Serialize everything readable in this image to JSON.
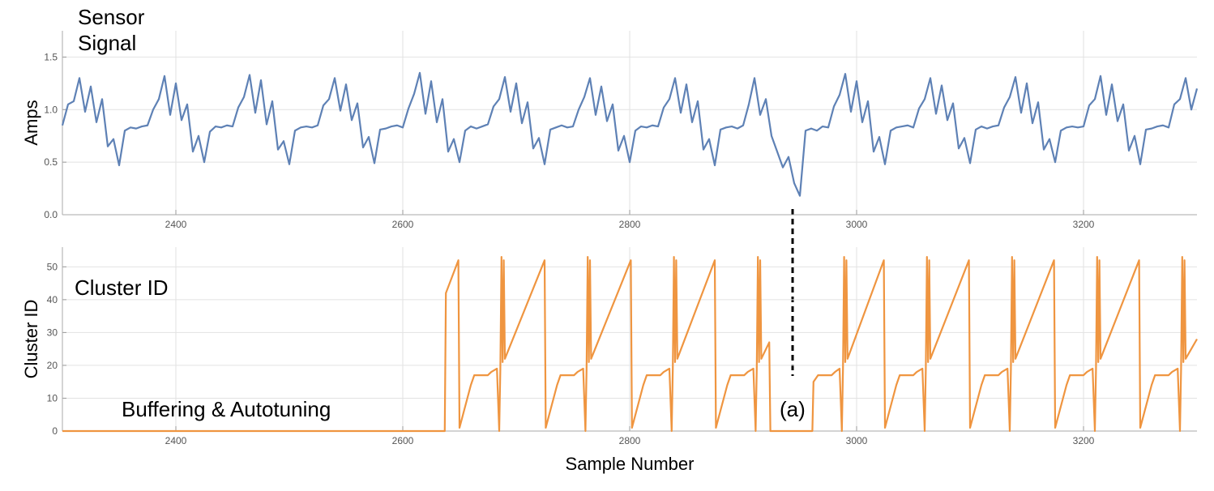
{
  "chart_data": [
    {
      "type": "line",
      "title_lines": [
        "Sensor",
        "Signal"
      ],
      "y_label": "Amps",
      "xlim": [
        2300,
        3300
      ],
      "xticks": [
        2400,
        2600,
        2800,
        3000,
        3200
      ],
      "ylim": [
        0,
        1.75
      ],
      "yticks": [
        {
          "value": 0,
          "label": "0.0"
        },
        {
          "value": 0.5,
          "label": "0.5"
        },
        {
          "value": 1,
          "label": "1.0"
        },
        {
          "value": 1.5,
          "label": "1.5"
        }
      ],
      "grid": true,
      "series": [
        {
          "color": "#5e81b5",
          "x": [
            2300,
            2305,
            2310,
            2315,
            2320,
            2325,
            2330,
            2335,
            2340,
            2345,
            2350,
            2355,
            2360,
            2365,
            2370,
            2375,
            2380,
            2385,
            2390,
            2395,
            2400,
            2405,
            2410,
            2415,
            2420,
            2425,
            2430,
            2435,
            2440,
            2445,
            2450,
            2455,
            2460,
            2465,
            2470,
            2475,
            2480,
            2485,
            2490,
            2495,
            2500,
            2505,
            2510,
            2515,
            2520,
            2525,
            2530,
            2535,
            2540,
            2545,
            2550,
            2555,
            2560,
            2565,
            2570,
            2575,
            2580,
            2585,
            2590,
            2595,
            2600,
            2605,
            2610,
            2615,
            2620,
            2625,
            2630,
            2635,
            2640,
            2645,
            2650,
            2655,
            2660,
            2665,
            2670,
            2675,
            2680,
            2685,
            2690,
            2695,
            2700,
            2705,
            2710,
            2715,
            2720,
            2725,
            2730,
            2735,
            2740,
            2745,
            2750,
            2755,
            2760,
            2765,
            2770,
            2775,
            2780,
            2785,
            2790,
            2795,
            2800,
            2805,
            2810,
            2815,
            2820,
            2825,
            2830,
            2835,
            2840,
            2845,
            2850,
            2855,
            2860,
            2865,
            2870,
            2875,
            2880,
            2885,
            2890,
            2895,
            2900,
            2905,
            2910,
            2915,
            2920,
            2925,
            2930,
            2935,
            2940,
            2945,
            2950,
            2955,
            2960,
            2965,
            2970,
            2975,
            2980,
            2985,
            2990,
            2995,
            3000,
            3005,
            3010,
            3015,
            3020,
            3025,
            3030,
            3035,
            3040,
            3045,
            3050,
            3055,
            3060,
            3065,
            3070,
            3075,
            3080,
            3085,
            3090,
            3095,
            3100,
            3105,
            3110,
            3115,
            3120,
            3125,
            3130,
            3135,
            3140,
            3145,
            3150,
            3155,
            3160,
            3165,
            3170,
            3175,
            3180,
            3185,
            3190,
            3195,
            3200,
            3205,
            3210,
            3215,
            3220,
            3225,
            3230,
            3235,
            3240,
            3245,
            3250,
            3255,
            3260,
            3265,
            3270,
            3275,
            3280,
            3285,
            3290,
            3295,
            3300
          ],
          "values": [
            0.85,
            1.05,
            1.08,
            1.3,
            0.98,
            1.22,
            0.88,
            1.1,
            0.65,
            0.72,
            0.47,
            0.8,
            0.83,
            0.82,
            0.84,
            0.85,
            1.0,
            1.1,
            1.32,
            0.95,
            1.25,
            0.9,
            1.05,
            0.6,
            0.75,
            0.5,
            0.79,
            0.84,
            0.83,
            0.85,
            0.84,
            1.02,
            1.12,
            1.33,
            0.97,
            1.28,
            0.86,
            1.08,
            0.62,
            0.7,
            0.48,
            0.8,
            0.83,
            0.84,
            0.83,
            0.85,
            1.04,
            1.1,
            1.3,
            0.99,
            1.24,
            0.9,
            1.06,
            0.64,
            0.74,
            0.49,
            0.81,
            0.82,
            0.84,
            0.85,
            0.83,
            1.01,
            1.15,
            1.35,
            0.96,
            1.27,
            0.88,
            1.1,
            0.6,
            0.72,
            0.5,
            0.8,
            0.84,
            0.82,
            0.84,
            0.86,
            1.03,
            1.1,
            1.31,
            0.98,
            1.25,
            0.87,
            1.07,
            0.63,
            0.73,
            0.48,
            0.81,
            0.83,
            0.85,
            0.83,
            0.84,
            1.0,
            1.12,
            1.3,
            0.95,
            1.22,
            0.89,
            1.05,
            0.61,
            0.75,
            0.5,
            0.8,
            0.84,
            0.83,
            0.85,
            0.84,
            1.02,
            1.1,
            1.3,
            0.97,
            1.24,
            0.88,
            1.08,
            0.62,
            0.72,
            0.47,
            0.81,
            0.83,
            0.84,
            0.82,
            0.85,
            1.05,
            1.3,
            0.95,
            1.1,
            0.75,
            0.6,
            0.45,
            0.55,
            0.3,
            0.18,
            0.8,
            0.82,
            0.8,
            0.84,
            0.83,
            1.03,
            1.14,
            1.34,
            0.98,
            1.27,
            0.88,
            1.08,
            0.6,
            0.74,
            0.48,
            0.8,
            0.83,
            0.84,
            0.85,
            0.83,
            1.01,
            1.1,
            1.3,
            0.96,
            1.23,
            0.9,
            1.06,
            0.63,
            0.73,
            0.49,
            0.81,
            0.84,
            0.82,
            0.84,
            0.85,
            1.02,
            1.12,
            1.31,
            0.97,
            1.25,
            0.87,
            1.07,
            0.62,
            0.72,
            0.5,
            0.8,
            0.83,
            0.84,
            0.83,
            0.84,
            1.04,
            1.1,
            1.32,
            0.95,
            1.24,
            0.89,
            1.05,
            0.61,
            0.75,
            0.48,
            0.81,
            0.82,
            0.84,
            0.85,
            0.83,
            1.05,
            1.1,
            1.3,
            1.0,
            1.2
          ]
        }
      ]
    },
    {
      "type": "line",
      "title": "Cluster ID",
      "y_label": "Cluster ID",
      "x_label": "Sample Number",
      "annotations": [
        {
          "text": "Buffering & Autotuning"
        },
        {
          "text": "(a)"
        }
      ],
      "xlim": [
        2300,
        3300
      ],
      "xticks": [
        2400,
        2600,
        2800,
        3000,
        3200
      ],
      "ylim": [
        0,
        56
      ],
      "yticks": [
        0,
        10,
        20,
        30,
        40,
        50
      ],
      "grid": true,
      "series": [
        {
          "color": "#ef9540",
          "x": [
            2300,
            2637,
            2638,
            2649,
            2650,
            2660,
            2663,
            2675,
            2678,
            2683,
            2685,
            2686,
            2687,
            2688,
            2689,
            2690,
            2725,
            2726,
            2736,
            2739,
            2751,
            2754,
            2759,
            2761,
            2762,
            2763,
            2764,
            2765,
            2766,
            2801,
            2802,
            2812,
            2815,
            2827,
            2830,
            2835,
            2837,
            2838,
            2839,
            2840,
            2841,
            2842,
            2875,
            2876,
            2886,
            2889,
            2901,
            2904,
            2909,
            2911,
            2912,
            2913,
            2914,
            2915,
            2916,
            2923,
            2924,
            2961,
            2962,
            2966,
            2978,
            2981,
            2985,
            2987,
            2988,
            2989,
            2990,
            2991,
            2992,
            3024,
            3025,
            3035,
            3038,
            3050,
            3053,
            3058,
            3060,
            3061,
            3062,
            3063,
            3064,
            3065,
            3099,
            3100,
            3110,
            3113,
            3125,
            3128,
            3133,
            3135,
            3136,
            3137,
            3138,
            3139,
            3140,
            3174,
            3175,
            3185,
            3188,
            3200,
            3203,
            3208,
            3210,
            3211,
            3212,
            3213,
            3214,
            3215,
            3249,
            3250,
            3260,
            3263,
            3275,
            3278,
            3283,
            3285,
            3286,
            3287,
            3288,
            3289,
            3290,
            3300
          ],
          "values": [
            0,
            0,
            42,
            52,
            1,
            14,
            17,
            17,
            18,
            19,
            0,
            19,
            53,
            21,
            52,
            22,
            52,
            1,
            14,
            17,
            17,
            18,
            19,
            0,
            19,
            53,
            21,
            52,
            22,
            52,
            1,
            14,
            17,
            17,
            18,
            19,
            0,
            19,
            53,
            21,
            52,
            22,
            52,
            1,
            14,
            17,
            17,
            18,
            19,
            0,
            19,
            53,
            21,
            52,
            22,
            27,
            0,
            0,
            15,
            17,
            17,
            18,
            19,
            0,
            19,
            53,
            21,
            52,
            22,
            52,
            1,
            14,
            17,
            17,
            18,
            19,
            0,
            19,
            53,
            21,
            52,
            22,
            52,
            1,
            14,
            17,
            17,
            18,
            19,
            0,
            19,
            53,
            21,
            52,
            22,
            52,
            1,
            14,
            17,
            17,
            18,
            19,
            0,
            19,
            53,
            21,
            52,
            22,
            52,
            1,
            14,
            17,
            17,
            18,
            19,
            0,
            19,
            53,
            21,
            52,
            22,
            28
          ]
        }
      ]
    }
  ]
}
